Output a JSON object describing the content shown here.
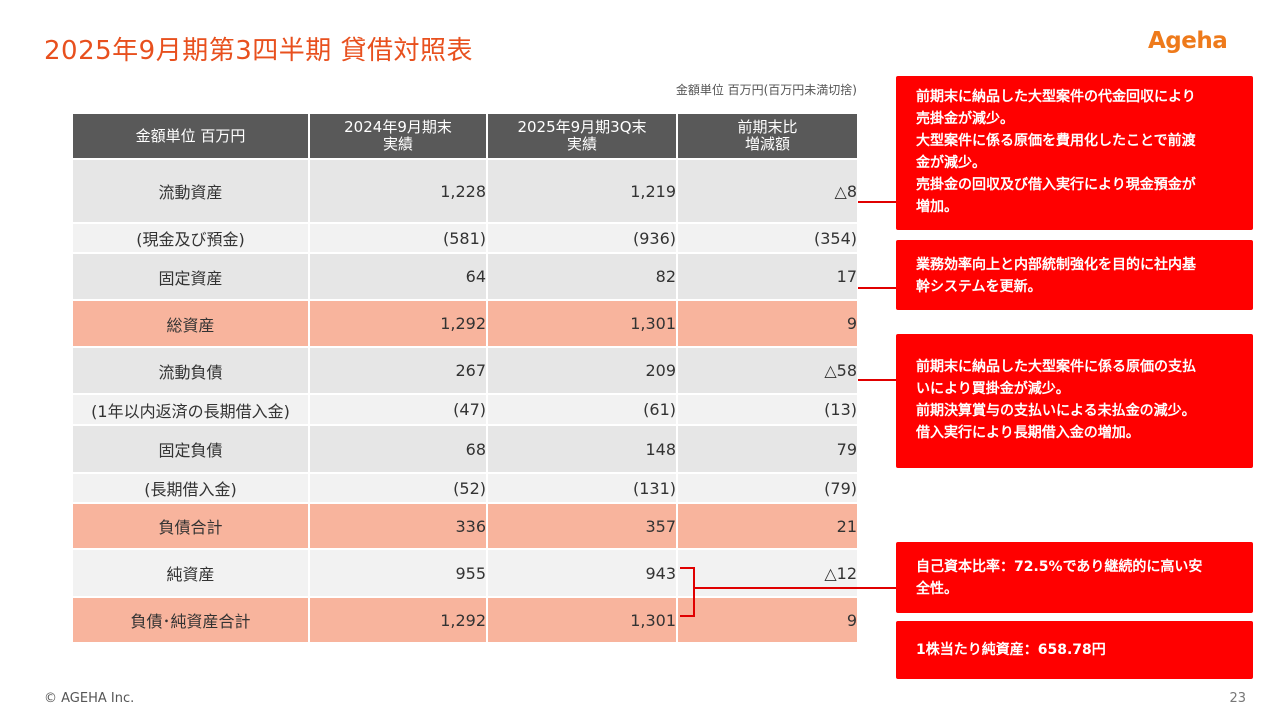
{
  "title": "2025年9月期第3四半期  貸借対照表",
  "logo": "Ageha",
  "unit_note": "金額単位 百万円(百万円未満切捨)",
  "table": {
    "headers": [
      "金額単位 百万円",
      "2024年9月期末\n実績",
      "2025年9月期3Q末\n実績",
      "前期末比\n増減額"
    ],
    "rows": [
      {
        "label": "流動資産",
        "prev": "1,228",
        "curr": "1,219",
        "diff": "△8"
      },
      {
        "label": "(現金及び預金)",
        "prev": "(581)",
        "curr": "(936)",
        "diff": "(354)"
      },
      {
        "label": "固定資産",
        "prev": "64",
        "curr": "82",
        "diff": "17"
      },
      {
        "label": "総資産",
        "prev": "1,292",
        "curr": "1,301",
        "diff": "9"
      },
      {
        "label": "流動負債",
        "prev": "267",
        "curr": "209",
        "diff": "△58"
      },
      {
        "label": "(1年以内返済の長期借入金)",
        "prev": "(47)",
        "curr": "(61)",
        "diff": "(13)"
      },
      {
        "label": "固定負債",
        "prev": "68",
        "curr": "148",
        "diff": "79"
      },
      {
        "label": "(長期借入金)",
        "prev": "(52)",
        "curr": "(131)",
        "diff": "(79)"
      },
      {
        "label": "負債合計",
        "prev": "336",
        "curr": "357",
        "diff": "21"
      },
      {
        "label": "純資産",
        "prev": "955",
        "curr": "943",
        "diff": "△12"
      },
      {
        "label": "負債･純資産合計",
        "prev": "1,292",
        "curr": "1,301",
        "diff": "9"
      }
    ]
  },
  "callouts": [
    {
      "lines": [
        "前期末に納品した大型案件の代金回収により",
        "売掛金が減少。",
        "大型案件に係る原価を費用化したことで前渡",
        "金が減少。",
        "売掛金の回収及び借入実行により現金預金が",
        "増加。"
      ]
    },
    {
      "lines": [
        "業務効率向上と内部統制強化を目的に社内基",
        "幹システムを更新。"
      ]
    },
    {
      "lines": [
        "前期末に納品した大型案件に係る原価の支払",
        "いにより買掛金が減少。",
        "前期決算賞与の支払いによる未払金の減少。",
        "借入実行により長期借入金の増加。"
      ]
    },
    {
      "lines": [
        "自己資本比率：72.5%であり継続的に高い安",
        "全性。"
      ]
    },
    {
      "lines": [
        "1株当たり純資産：658.78円"
      ]
    }
  ],
  "colors": {
    "accent": "#e8501e",
    "header_bg": "#595959",
    "total_row": "#f8b49d",
    "callout_red": "#ff0000"
  },
  "footer": {
    "copyright": "© AGEHA Inc.",
    "page": "23"
  }
}
